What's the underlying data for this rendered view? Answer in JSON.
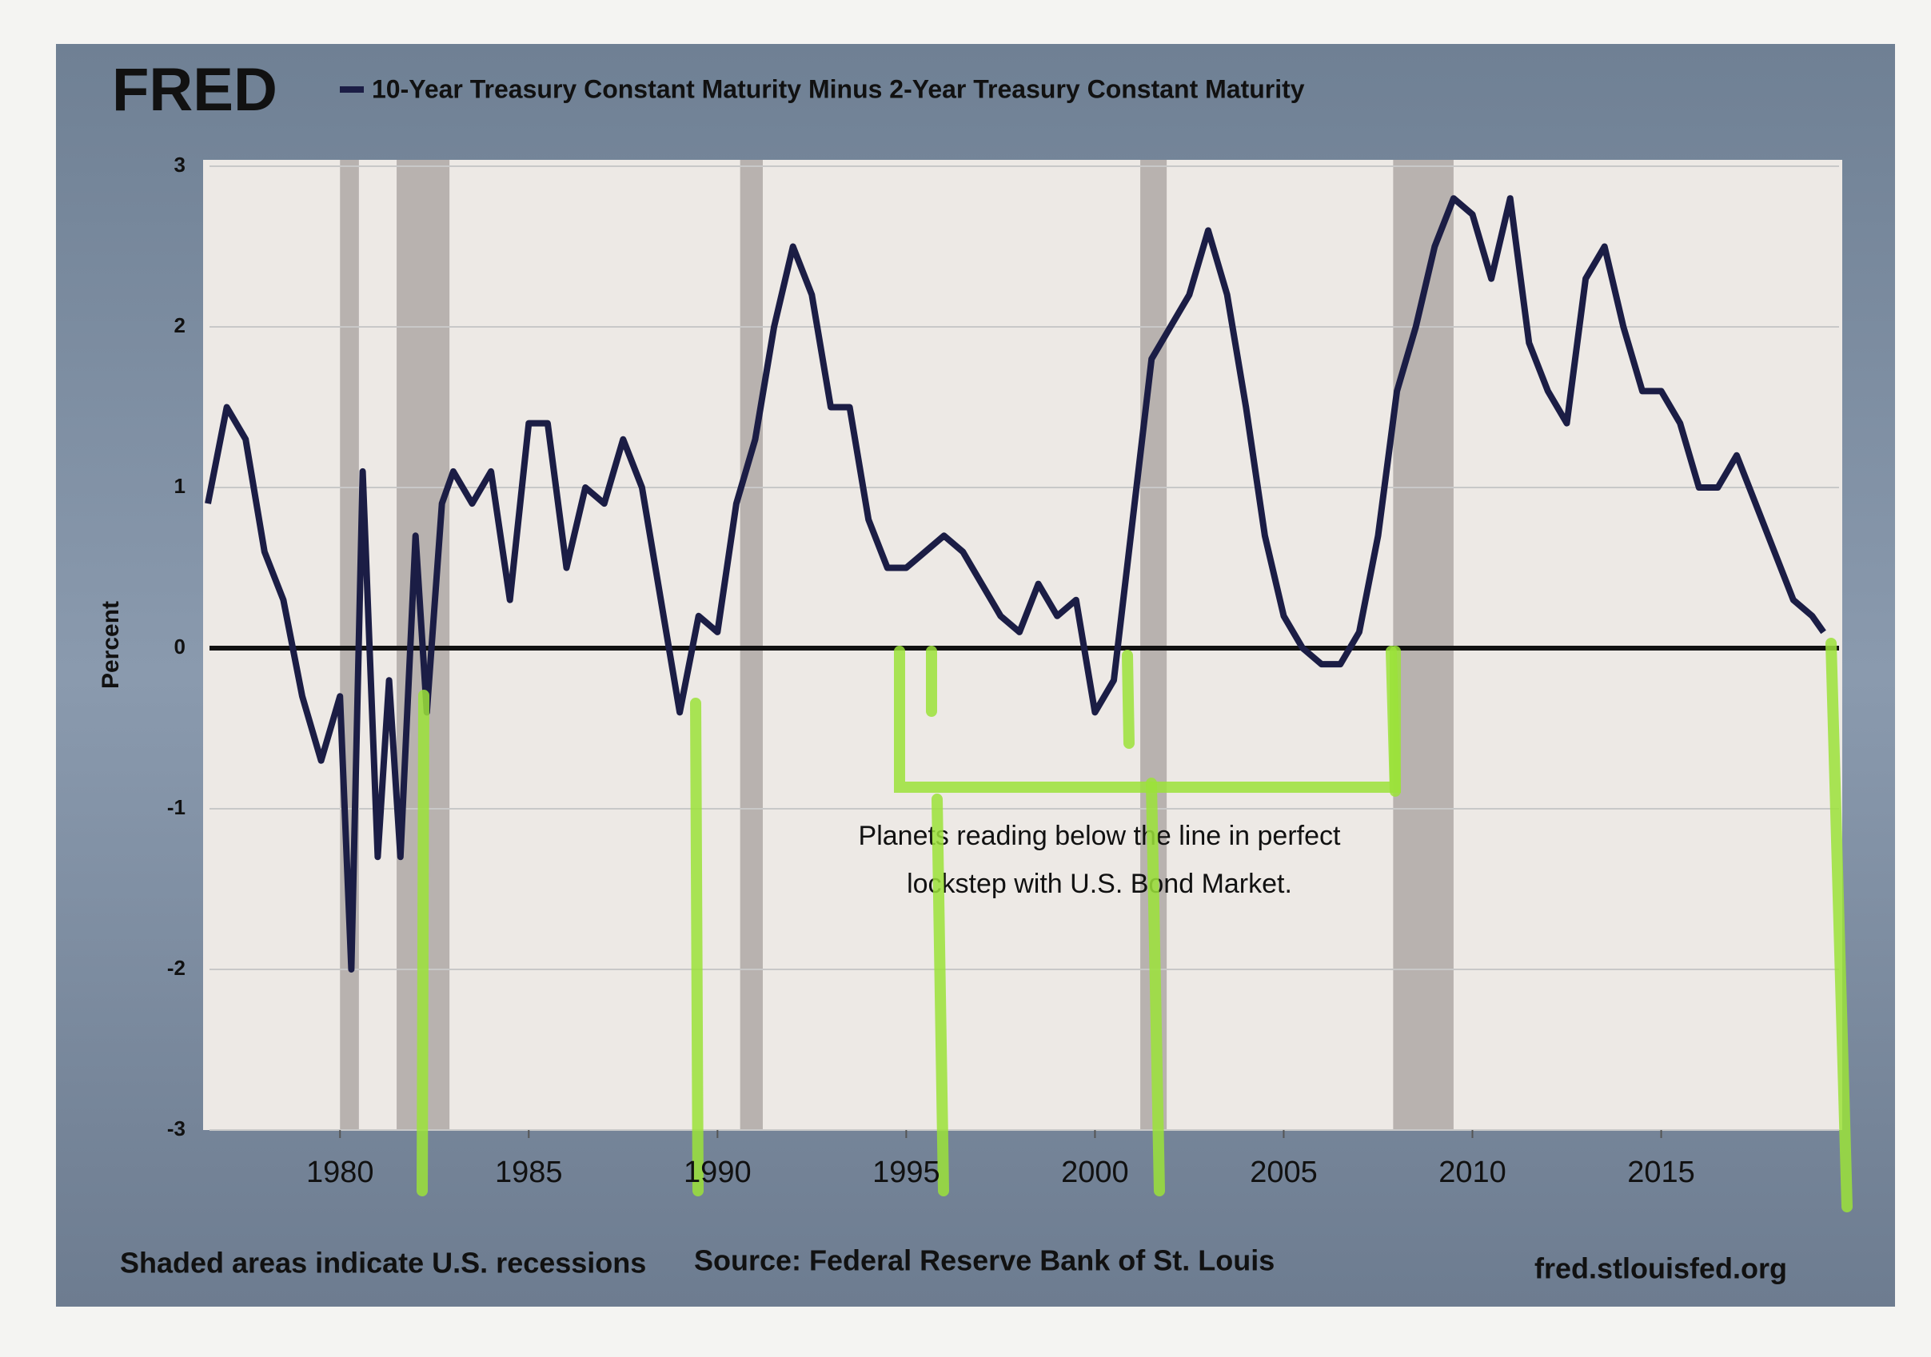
{
  "chart_data": {
    "type": "line",
    "logo": "FRED",
    "ylabel": "Percent",
    "annotation": [
      "Planets reading below the line in perfect",
      "lockstep with U.S. Bond Market."
    ],
    "footer_left": "Shaded areas indicate U.S. recessions",
    "footer_center": "Source: Federal Reserve Bank of St. Louis",
    "footer_right": "fred.stlouisfed.org",
    "xlim": [
      1976.5,
      2019.5
    ],
    "xticks": [
      1980,
      1985,
      1990,
      1995,
      2000,
      2005,
      2010,
      2015
    ],
    "ylim": [
      -3,
      3
    ],
    "yticks": [
      3,
      2,
      1,
      0,
      -1,
      -2,
      -3
    ],
    "grid": true,
    "recessions": [
      [
        1980.0,
        1980.5
      ],
      [
        1981.5,
        1982.9
      ],
      [
        1990.6,
        1991.2
      ],
      [
        2001.2,
        2001.9
      ],
      [
        2007.9,
        2009.5
      ]
    ],
    "x": [
      1976.5,
      1977,
      1977.5,
      1978,
      1978.5,
      1979,
      1979.5,
      1980,
      1980.3,
      1980.6,
      1981,
      1981.3,
      1981.6,
      1982,
      1982.3,
      1982.7,
      1983,
      1983.5,
      1984,
      1984.5,
      1985,
      1985.5,
      1986,
      1986.5,
      1987,
      1987.5,
      1988,
      1988.5,
      1989,
      1989.5,
      1990,
      1990.5,
      1991,
      1991.5,
      1992,
      1992.5,
      1993,
      1993.5,
      1994,
      1994.5,
      1995,
      1995.5,
      1996,
      1996.5,
      1997,
      1997.5,
      1998,
      1998.5,
      1999,
      1999.5,
      2000,
      2000.5,
      2001,
      2001.5,
      2002,
      2002.5,
      2003,
      2003.5,
      2004,
      2004.5,
      2005,
      2005.5,
      2006,
      2006.5,
      2007,
      2007.5,
      2008,
      2008.5,
      2009,
      2009.5,
      2010,
      2010.5,
      2011,
      2011.5,
      2012,
      2012.5,
      2013,
      2013.5,
      2014,
      2014.5,
      2015,
      2015.5,
      2016,
      2016.5,
      2017,
      2017.5,
      2018,
      2018.5,
      2019,
      2019.3
    ],
    "series": [
      {
        "name": "10-Year Treasury Constant Maturity Minus 2-Year Treasury Constant Maturity",
        "color": "#1b1d45",
        "values": [
          0.9,
          1.5,
          1.3,
          0.6,
          0.3,
          -0.3,
          -0.7,
          -0.3,
          -2.0,
          1.1,
          -1.3,
          -0.2,
          -1.3,
          0.7,
          -0.4,
          0.9,
          1.1,
          0.9,
          1.1,
          0.3,
          1.4,
          1.4,
          0.5,
          1.0,
          0.9,
          1.3,
          1.0,
          0.3,
          -0.4,
          0.2,
          0.1,
          0.9,
          1.3,
          2.0,
          2.5,
          2.2,
          1.5,
          1.5,
          0.8,
          0.5,
          0.5,
          0.6,
          0.7,
          0.6,
          0.4,
          0.2,
          0.1,
          0.4,
          0.2,
          0.3,
          -0.4,
          -0.2,
          0.8,
          1.8,
          2.0,
          2.2,
          2.6,
          2.2,
          1.5,
          0.7,
          0.2,
          0.0,
          -0.1,
          -0.1,
          0.1,
          0.7,
          1.6,
          2.0,
          2.5,
          2.8,
          2.7,
          2.3,
          2.8,
          1.9,
          1.6,
          1.4,
          2.3,
          2.5,
          2.0,
          1.6,
          1.6,
          1.4,
          1.0,
          1.0,
          1.2,
          0.9,
          0.6,
          0.3,
          0.2,
          0.1
        ]
      }
    ]
  }
}
